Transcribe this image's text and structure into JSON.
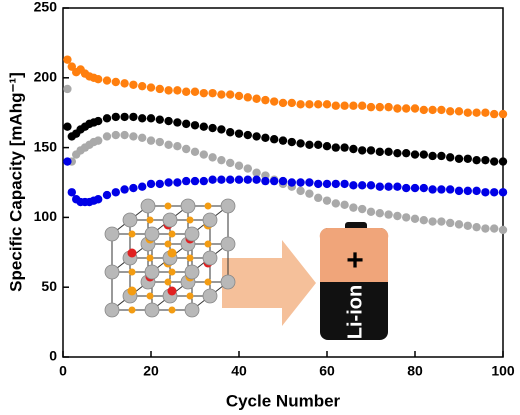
{
  "chart_data": {
    "type": "scatter",
    "xlabel": "Cycle Number",
    "ylabel": "Specific Capacity [mAhg⁻¹]",
    "x": [
      1,
      2,
      3,
      4,
      5,
      6,
      7,
      8,
      10,
      12,
      14,
      16,
      18,
      20,
      22,
      24,
      26,
      28,
      30,
      32,
      34,
      36,
      38,
      40,
      42,
      44,
      46,
      48,
      50,
      52,
      54,
      56,
      58,
      60,
      62,
      64,
      66,
      68,
      70,
      72,
      74,
      76,
      78,
      80,
      82,
      84,
      86,
      88,
      90,
      92,
      94,
      96,
      98,
      100
    ],
    "series": [
      {
        "color": "#a9a9a9",
        "values": [
          192,
          140,
          145,
          148,
          150,
          152,
          154,
          155,
          158,
          159,
          159,
          158,
          157,
          155,
          154,
          152,
          151,
          149,
          147,
          145,
          143,
          141,
          139,
          137,
          135,
          132,
          130,
          127,
          124,
          122,
          119,
          117,
          114,
          112,
          110,
          109,
          107,
          106,
          104,
          103,
          102,
          101,
          100,
          99,
          98,
          97,
          97,
          96,
          95,
          94,
          93,
          92,
          92,
          91
        ]
      },
      {
        "color": "#0000e6",
        "values": [
          140,
          118,
          113,
          111,
          111,
          111,
          112,
          113,
          116,
          118,
          120,
          121,
          122,
          124,
          124,
          125,
          125,
          126,
          126,
          126,
          127,
          127,
          127,
          127,
          127,
          127,
          126,
          126,
          126,
          125,
          125,
          125,
          124,
          124,
          124,
          124,
          123,
          123,
          123,
          122,
          122,
          122,
          121,
          121,
          121,
          120,
          120,
          120,
          119,
          119,
          119,
          118,
          118,
          118
        ]
      },
      {
        "color": "#000000",
        "values": [
          165,
          158,
          160,
          163,
          165,
          167,
          168,
          169,
          171,
          172,
          172,
          172,
          171,
          171,
          170,
          169,
          168,
          167,
          166,
          165,
          164,
          163,
          161,
          160,
          159,
          158,
          157,
          156,
          155,
          154,
          153,
          152,
          152,
          151,
          150,
          150,
          149,
          148,
          148,
          147,
          147,
          146,
          146,
          145,
          145,
          144,
          144,
          143,
          142,
          142,
          141,
          141,
          140,
          140
        ]
      },
      {
        "color": "#ff7f0e",
        "values": [
          213,
          208,
          204,
          206,
          203,
          201,
          200,
          199,
          198,
          197,
          196,
          195,
          194,
          193,
          192,
          191,
          191,
          190,
          190,
          189,
          189,
          188,
          188,
          187,
          186,
          185,
          184,
          183,
          182,
          182,
          181,
          181,
          181,
          181,
          180,
          180,
          180,
          180,
          179,
          179,
          179,
          178,
          178,
          178,
          177,
          177,
          177,
          176,
          176,
          175,
          175,
          175,
          174,
          174
        ]
      }
    ],
    "xlim": [
      0,
      100
    ],
    "xticks": [
      0,
      20,
      40,
      60,
      80,
      100
    ],
    "ylim": [
      0,
      250
    ],
    "yticks": [
      0,
      50,
      100,
      150,
      200,
      250
    ]
  },
  "inset": {
    "battery_sign": "+",
    "battery_label": "Li-ion"
  }
}
